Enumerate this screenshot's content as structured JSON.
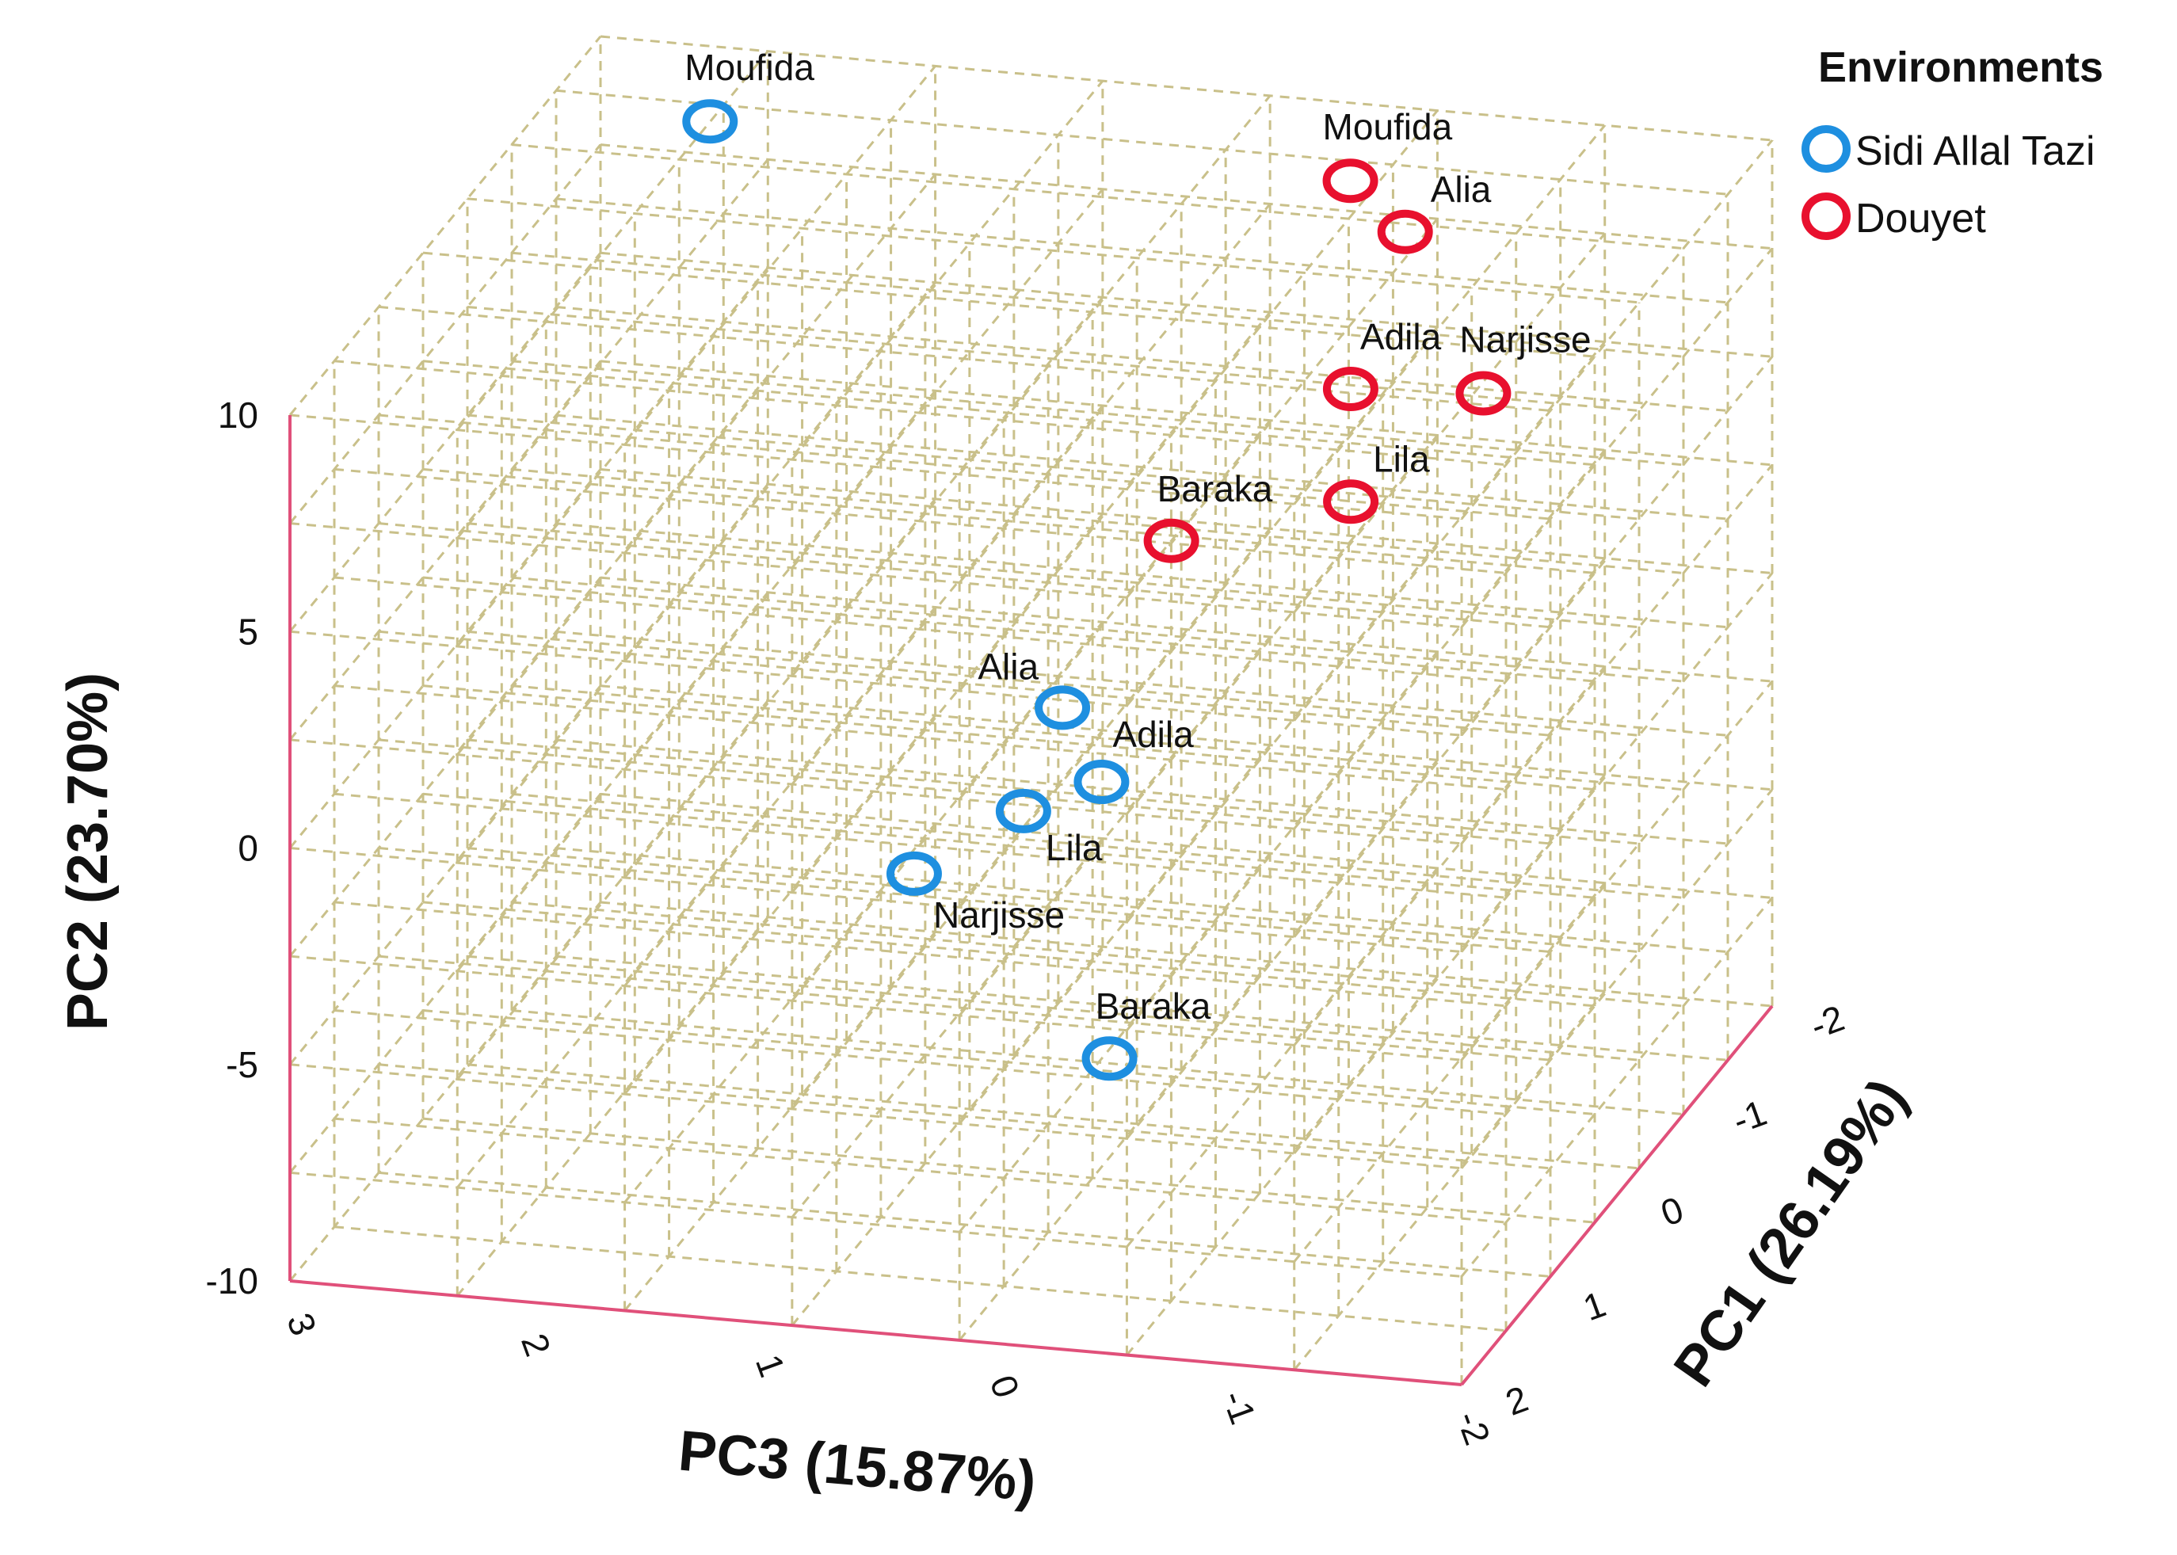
{
  "chart_data": {
    "type": "scatter",
    "projection": "3d",
    "title": "",
    "axes": {
      "pc1": {
        "label": "PC1 (26.19%)",
        "range": [
          -2,
          2
        ],
        "ticks": [
          "2",
          "1",
          "0",
          "-1",
          "-2"
        ]
      },
      "pc2": {
        "label": "PC2 (23.70%)",
        "range": [
          -10,
          10
        ],
        "ticks": [
          "10",
          "5",
          "0",
          "-5",
          "-10"
        ]
      },
      "pc3": {
        "label": "PC3 (15.87%)",
        "range": [
          -2,
          3
        ],
        "ticks": [
          "3",
          "2",
          "1",
          "0",
          "-1",
          "-2"
        ]
      }
    },
    "legend": {
      "title": "Environments",
      "position": "top-right",
      "entries": [
        {
          "name": "Sidi Allal Tazi",
          "color": "#1e8fe0"
        },
        {
          "name": "Douyet",
          "color": "#e8102e"
        }
      ]
    },
    "series": [
      {
        "name": "Sidi Allal Tazi",
        "color": "#1e8fe0",
        "points": [
          {
            "label": "Moufida",
            "pc3": 2.4,
            "pc2": 9.2,
            "pc1": -1.6
          },
          {
            "label": "Alia",
            "pc3": 0.3,
            "pc2": 0.6,
            "pc1": 0.2
          },
          {
            "label": "Adila",
            "pc3": 0.1,
            "pc2": -0.8,
            "pc1": 0.3
          },
          {
            "label": "Lila",
            "pc3": 0.4,
            "pc2": -1.4,
            "pc1": 0.4
          },
          {
            "label": "Narjisse",
            "pc3": 0.8,
            "pc2": -2.6,
            "pc1": 0.6
          },
          {
            "label": "Baraka",
            "pc3": -0.1,
            "pc2": -6.0,
            "pc1": 0.8
          }
        ]
      },
      {
        "name": "Douyet",
        "color": "#e8102e",
        "points": [
          {
            "label": "Moufida",
            "pc3": -0.2,
            "pc2": 8.2,
            "pc1": -2.0
          },
          {
            "label": "Alia",
            "pc3": -0.5,
            "pc2": 7.6,
            "pc1": -1.8
          },
          {
            "label": "Adila",
            "pc3": -0.4,
            "pc2": 4.8,
            "pc1": -1.4
          },
          {
            "label": "Narjisse",
            "pc3": -0.9,
            "pc2": 4.5,
            "pc1": -1.6
          },
          {
            "label": "Baraka",
            "pc3": 0.1,
            "pc2": 2.8,
            "pc1": -0.6
          },
          {
            "label": "Lila",
            "pc3": -0.5,
            "pc2": 2.9,
            "pc1": -1.1
          }
        ]
      }
    ]
  }
}
